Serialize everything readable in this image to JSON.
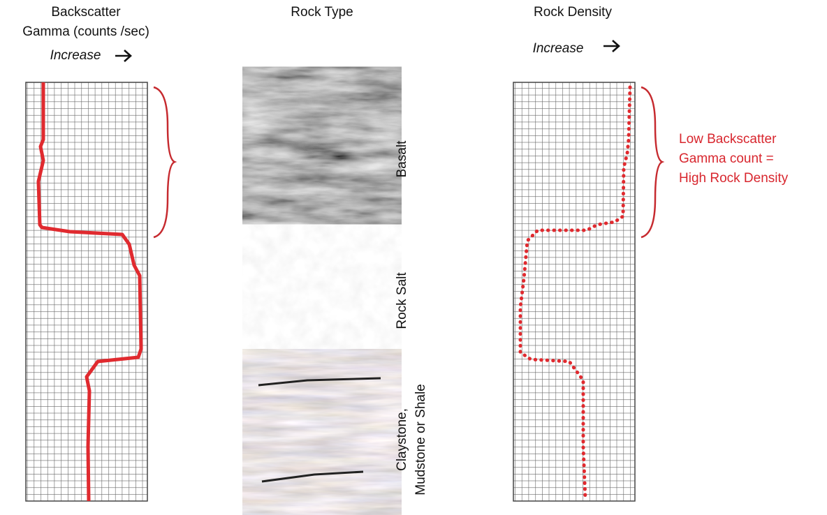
{
  "left_panel": {
    "title_lines": [
      "Backscatter",
      "Gamma (counts /sec)"
    ],
    "direction": "Increase"
  },
  "middle_panel": {
    "title": "Rock Type",
    "rocks": [
      {
        "label_lines": [
          "Basalt"
        ]
      },
      {
        "label_lines": [
          "Rock Salt"
        ]
      },
      {
        "label_lines": [
          "Claystone,",
          "Mudstone or Shale"
        ]
      }
    ]
  },
  "right_panel": {
    "title": "Rock Density",
    "direction": "Increase"
  },
  "annotation": {
    "lines": [
      "Low Backscatter",
      "Gamma count =",
      "High Rock Density"
    ]
  }
}
